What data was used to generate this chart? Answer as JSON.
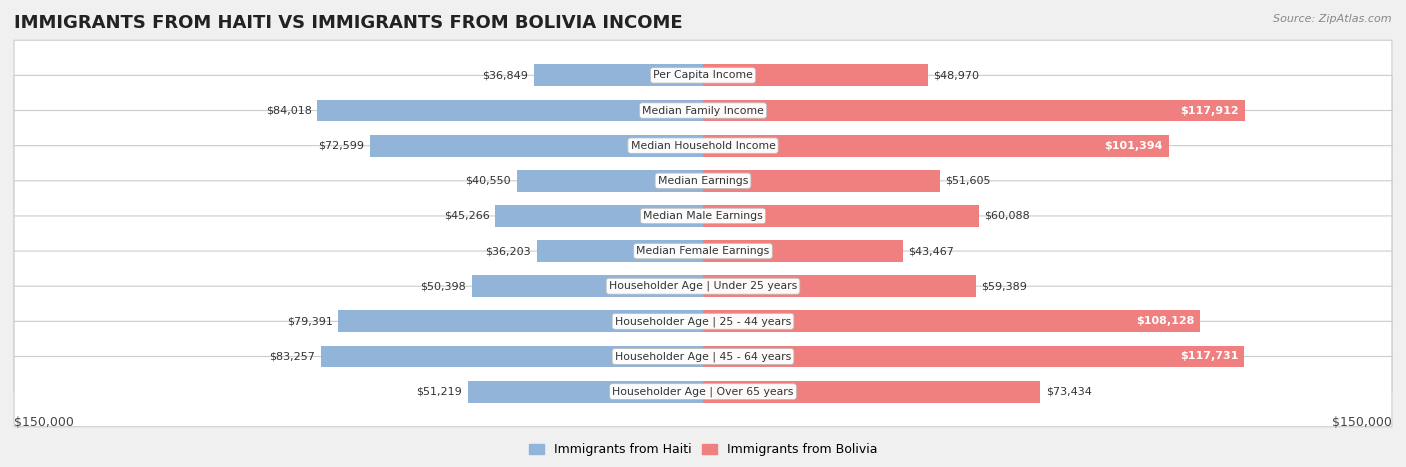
{
  "title": "IMMIGRANTS FROM HAITI VS IMMIGRANTS FROM BOLIVIA INCOME",
  "source": "Source: ZipAtlas.com",
  "categories": [
    "Per Capita Income",
    "Median Family Income",
    "Median Household Income",
    "Median Earnings",
    "Median Male Earnings",
    "Median Female Earnings",
    "Householder Age | Under 25 years",
    "Householder Age | 25 - 44 years",
    "Householder Age | 45 - 64 years",
    "Householder Age | Over 65 years"
  ],
  "haiti_values": [
    36849,
    84018,
    72599,
    40550,
    45266,
    36203,
    50398,
    79391,
    83257,
    51219
  ],
  "bolivia_values": [
    48970,
    117912,
    101394,
    51605,
    60088,
    43467,
    59389,
    108128,
    117731,
    73434
  ],
  "haiti_labels": [
    "$36,849",
    "$84,018",
    "$72,599",
    "$40,550",
    "$45,266",
    "$36,203",
    "$50,398",
    "$79,391",
    "$83,257",
    "$51,219"
  ],
  "bolivia_labels": [
    "$48,970",
    "$117,912",
    "$101,394",
    "$51,605",
    "$60,088",
    "$43,467",
    "$59,389",
    "$108,128",
    "$117,731",
    "$73,434"
  ],
  "max_value": 150000,
  "haiti_color": "#92b4d8",
  "bolivia_color": "#f08080",
  "background_color": "#f0f0f0",
  "row_bg_light": "#f9f9f9",
  "row_bg_dark": "#eeeeee",
  "label_color_dark": "#333333",
  "label_color_white": "#ffffff",
  "title_fontsize": 13,
  "legend_haiti": "Immigrants from Haiti",
  "legend_bolivia": "Immigrants from Bolivia",
  "x_label_left": "$150,000",
  "x_label_right": "$150,000",
  "white_label_threshold": 80000
}
